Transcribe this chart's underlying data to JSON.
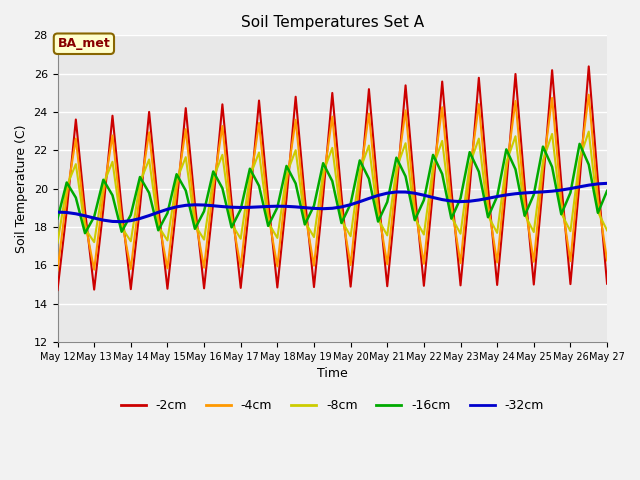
{
  "title": "Soil Temperatures Set A",
  "xlabel": "Time",
  "ylabel": "Soil Temperature (C)",
  "ylim": [
    12,
    28
  ],
  "yticks": [
    12,
    14,
    16,
    18,
    20,
    22,
    24,
    26,
    28
  ],
  "legend_labels": [
    "-2cm",
    "-4cm",
    "-8cm",
    "-16cm",
    "-32cm"
  ],
  "legend_colors": [
    "#cc0000",
    "#ff9900",
    "#cccc00",
    "#00aa00",
    "#0000cc"
  ],
  "annotation_text": "BA_met",
  "annotation_box_color": "#ffffcc",
  "annotation_border_color": "#886600",
  "annotation_text_color": "#880000",
  "plot_bg_color": "#e8e8e8",
  "fig_bg_color": "#f2f2f2",
  "grid_color": "#ffffff",
  "figsize": [
    6.4,
    4.8
  ],
  "dpi": 100,
  "n_pts": 61,
  "days": 15
}
